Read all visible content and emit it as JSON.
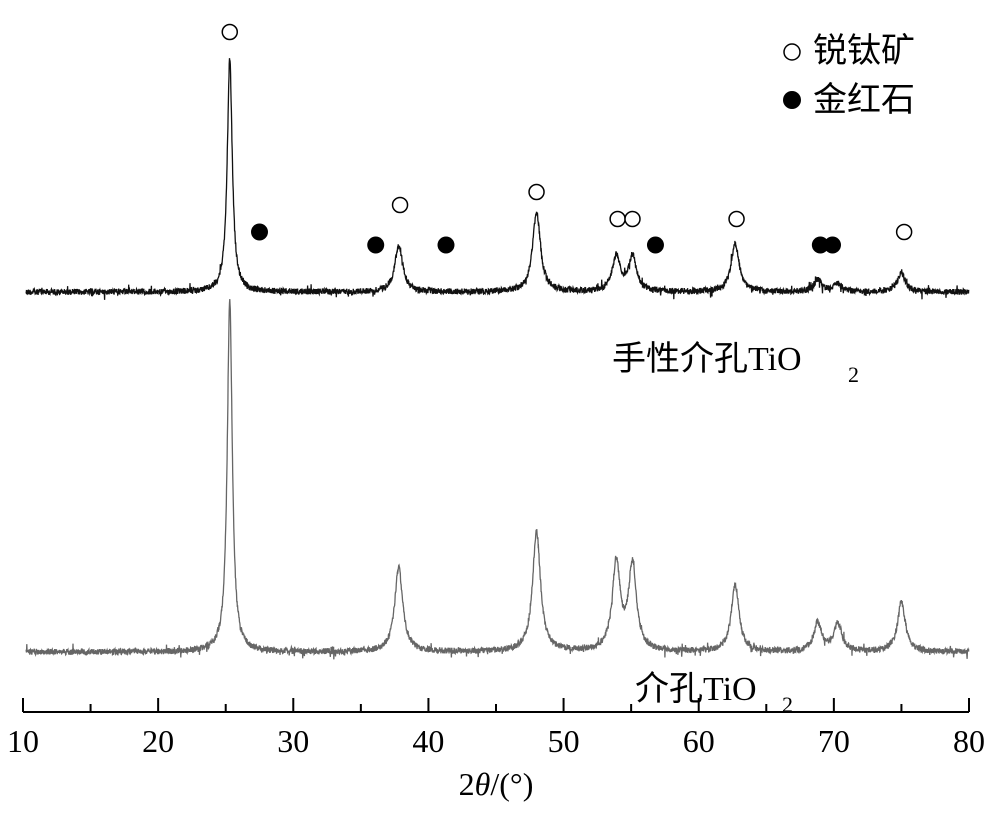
{
  "chart_data": {
    "type": "line",
    "xlabel": "2θ/(°)",
    "xlabel_parts": {
      "italic": "θ",
      "prefix": "2",
      "suffix": "/(°)"
    },
    "xlim": [
      10,
      80
    ],
    "xticks": [
      10,
      20,
      30,
      40,
      50,
      60,
      70,
      80
    ],
    "minor_xticks": [
      15,
      25,
      35,
      45,
      55,
      65,
      75
    ],
    "yaxis_visible": false,
    "grid": false,
    "legend": {
      "placement": "top-right",
      "entries": [
        {
          "marker": "open-circle",
          "label": "锐钛矿"
        },
        {
          "marker": "filled-circle",
          "label": "金红石"
        }
      ]
    },
    "series": [
      {
        "name": "手性介孔TiO2",
        "label_main": "手性介孔TiO",
        "label_sub": "2",
        "color": "#111111",
        "position": "upper",
        "peaks": [
          {
            "x": 25.3,
            "intensity": 100
          },
          {
            "x": 37.8,
            "intensity": 20
          },
          {
            "x": 48.0,
            "intensity": 34
          },
          {
            "x": 53.9,
            "intensity": 15
          },
          {
            "x": 55.1,
            "intensity": 15
          },
          {
            "x": 62.7,
            "intensity": 21
          },
          {
            "x": 68.8,
            "intensity": 5
          },
          {
            "x": 70.3,
            "intensity": 3.5
          },
          {
            "x": 75.0,
            "intensity": 8
          }
        ],
        "markers": [
          {
            "x": 25.3,
            "phase": "anatase"
          },
          {
            "x": 27.5,
            "phase": "rutile"
          },
          {
            "x": 36.1,
            "phase": "rutile"
          },
          {
            "x": 37.9,
            "phase": "anatase"
          },
          {
            "x": 41.3,
            "phase": "rutile"
          },
          {
            "x": 48.0,
            "phase": "anatase"
          },
          {
            "x": 54.0,
            "phase": "anatase"
          },
          {
            "x": 55.1,
            "phase": "anatase"
          },
          {
            "x": 56.8,
            "phase": "rutile"
          },
          {
            "x": 62.8,
            "phase": "anatase"
          },
          {
            "x": 69.0,
            "phase": "rutile"
          },
          {
            "x": 69.9,
            "phase": "rutile"
          },
          {
            "x": 75.2,
            "phase": "anatase"
          }
        ]
      },
      {
        "name": "介孔TiO2",
        "label_main": "介孔TiO",
        "label_sub": "2",
        "color": "#666666",
        "position": "lower",
        "peaks": [
          {
            "x": 25.3,
            "intensity": 100
          },
          {
            "x": 37.8,
            "intensity": 24
          },
          {
            "x": 48.0,
            "intensity": 34
          },
          {
            "x": 53.9,
            "intensity": 25
          },
          {
            "x": 55.1,
            "intensity": 24
          },
          {
            "x": 62.7,
            "intensity": 19
          },
          {
            "x": 68.8,
            "intensity": 8
          },
          {
            "x": 70.3,
            "intensity": 8
          },
          {
            "x": 75.0,
            "intensity": 14
          }
        ],
        "markers": []
      }
    ]
  }
}
